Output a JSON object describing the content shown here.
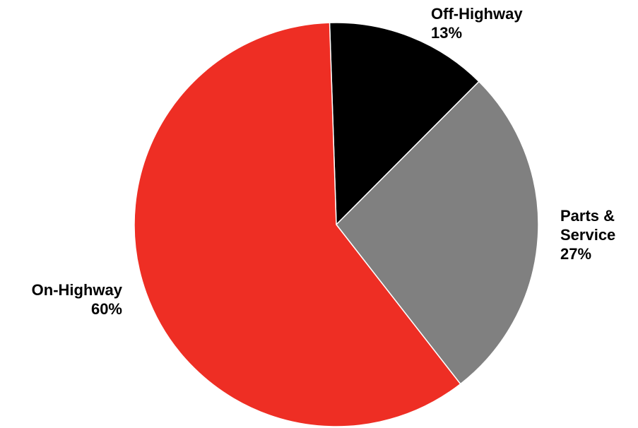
{
  "chart_data": {
    "type": "pie",
    "title": "",
    "slices": [
      {
        "label": "Off-Highway",
        "value": 13,
        "value_label": "13%",
        "color": "#000000"
      },
      {
        "label": "Parts & Service",
        "value": 27,
        "value_label": "27%",
        "color": "#808080"
      },
      {
        "label": "On-Highway",
        "value": 60,
        "value_label": "60%",
        "color": "#ee2e24"
      }
    ],
    "start": "12 o'clock",
    "direction": "clockwise",
    "legend": "none"
  }
}
